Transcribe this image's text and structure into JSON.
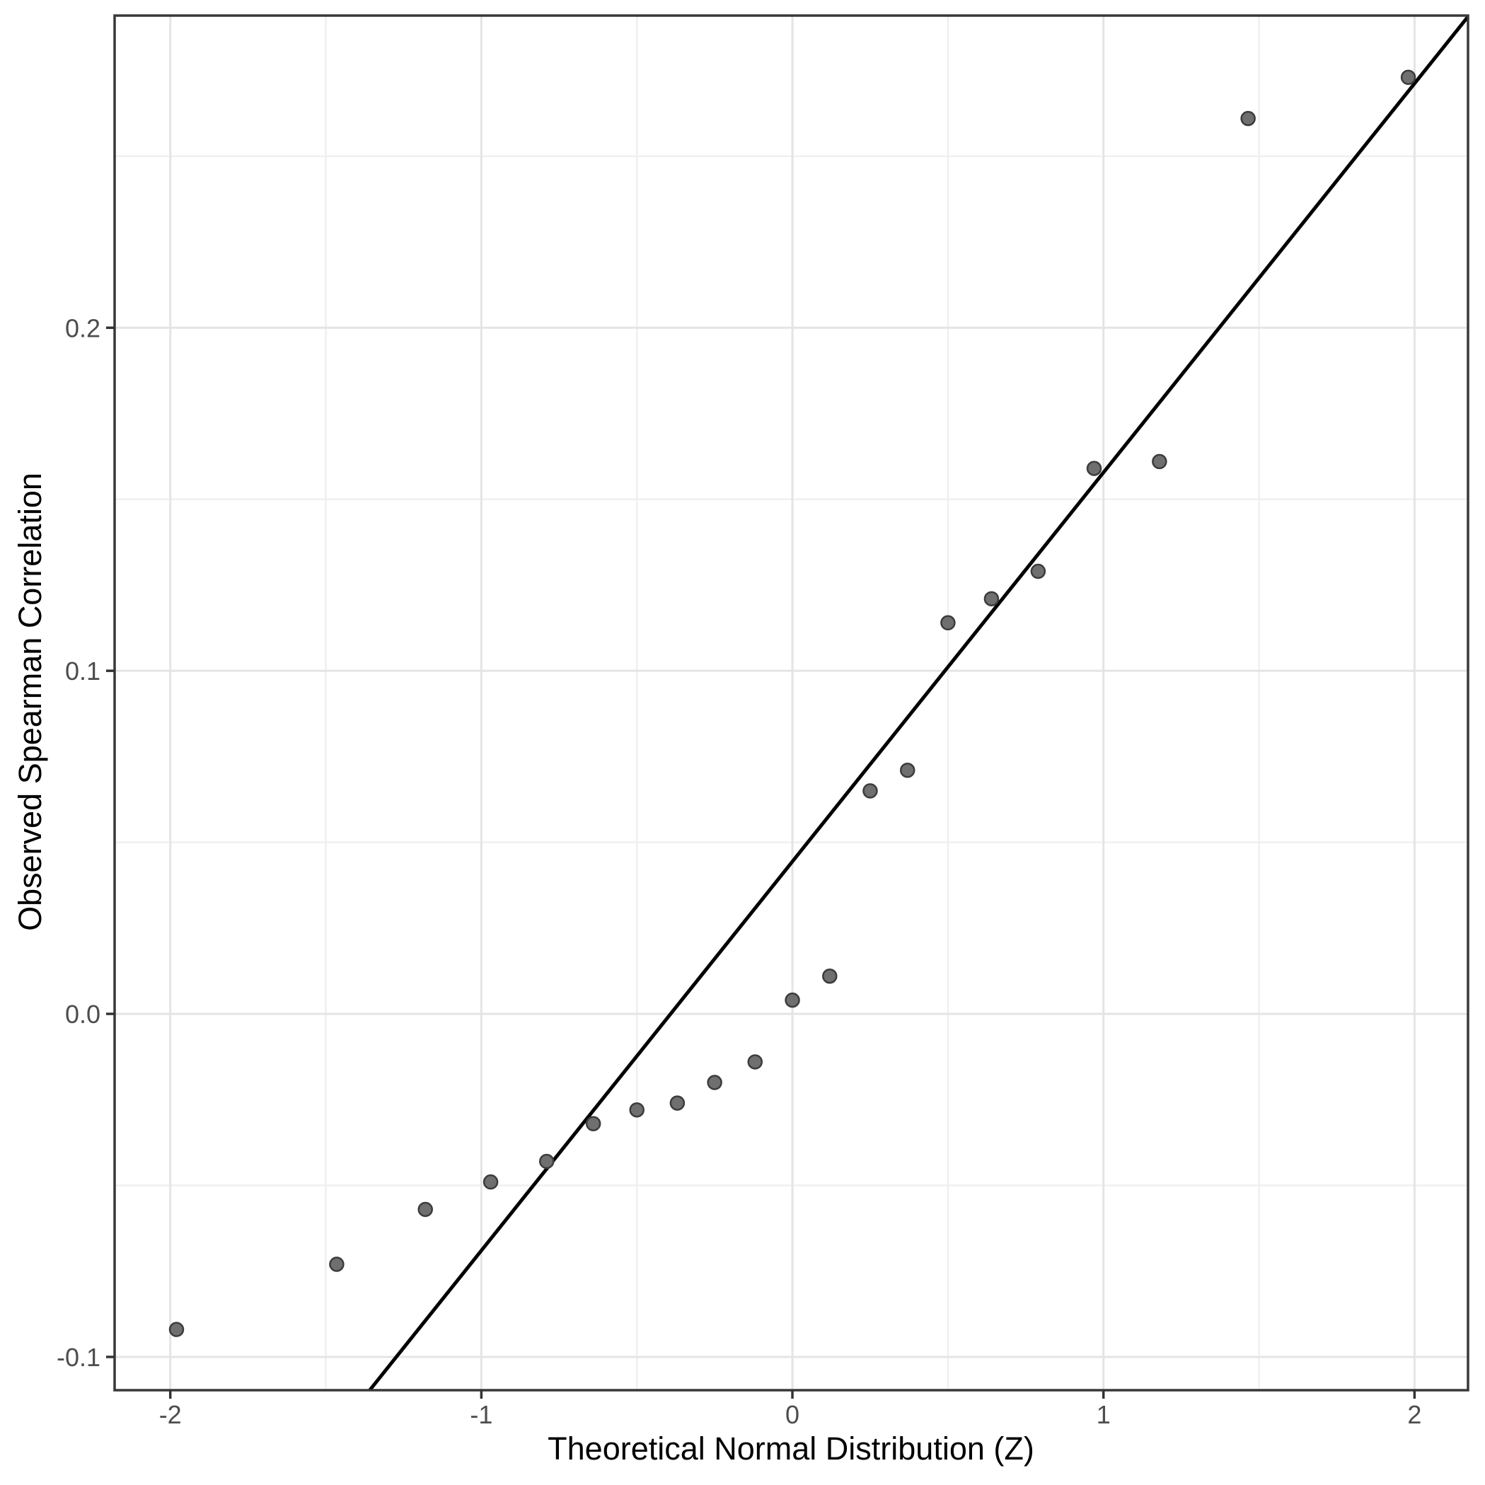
{
  "chart_data": {
    "type": "scatter",
    "title": "",
    "xlabel": "Theoretical Normal Distribution (Z)",
    "ylabel": "Observed Spearman Correlation",
    "xlim": [
      -2.179,
      2.172
    ],
    "ylim": [
      -0.1097,
      0.291
    ],
    "x_major_ticks": [
      -2,
      -1,
      0,
      1,
      2
    ],
    "x_tick_labels": [
      "-2",
      "-1",
      "0",
      "1",
      "2"
    ],
    "x_minor_ticks": [
      -1.5,
      -0.5,
      0.5,
      1.5
    ],
    "y_major_ticks": [
      0.2,
      0.1,
      0.0,
      -0.1
    ],
    "y_tick_labels": [
      "0.2",
      "0.1",
      "0.0",
      "-0.1"
    ],
    "y_minor_ticks": [
      0.25,
      0.15,
      0.05,
      -0.05
    ],
    "grid": true,
    "legend": "none",
    "points": [
      [
        -1.98,
        -0.092
      ],
      [
        -1.465,
        -0.073
      ],
      [
        -1.18,
        -0.057
      ],
      [
        -0.97,
        -0.049
      ],
      [
        -0.79,
        -0.043
      ],
      [
        -0.64,
        -0.032
      ],
      [
        -0.5,
        -0.028
      ],
      [
        -0.37,
        -0.026
      ],
      [
        -0.25,
        -0.02
      ],
      [
        -0.12,
        -0.014
      ],
      [
        0.0,
        0.004
      ],
      [
        0.12,
        0.011
      ],
      [
        0.25,
        0.065
      ],
      [
        0.37,
        0.071
      ],
      [
        0.5,
        0.114
      ],
      [
        0.64,
        0.121
      ],
      [
        0.79,
        0.129
      ],
      [
        0.97,
        0.159
      ],
      [
        1.18,
        0.161
      ],
      [
        1.465,
        0.261
      ],
      [
        1.98,
        0.273
      ]
    ],
    "reference_line": {
      "slope": 0.1134,
      "intercept": 0.0444
    },
    "style": {
      "background": "#ffffff",
      "panel_background": "#ffffff",
      "grid_major": "#e4e4e4",
      "grid_minor": "#efefef",
      "panel_border": "#383838",
      "tick_color": "#333333",
      "tick_label_color": "#4d4d4d",
      "axis_title_color": "#000000",
      "point_fill": "#6f6f6f",
      "point_stroke": "#3c3c3c",
      "line_color": "#000000"
    }
  }
}
